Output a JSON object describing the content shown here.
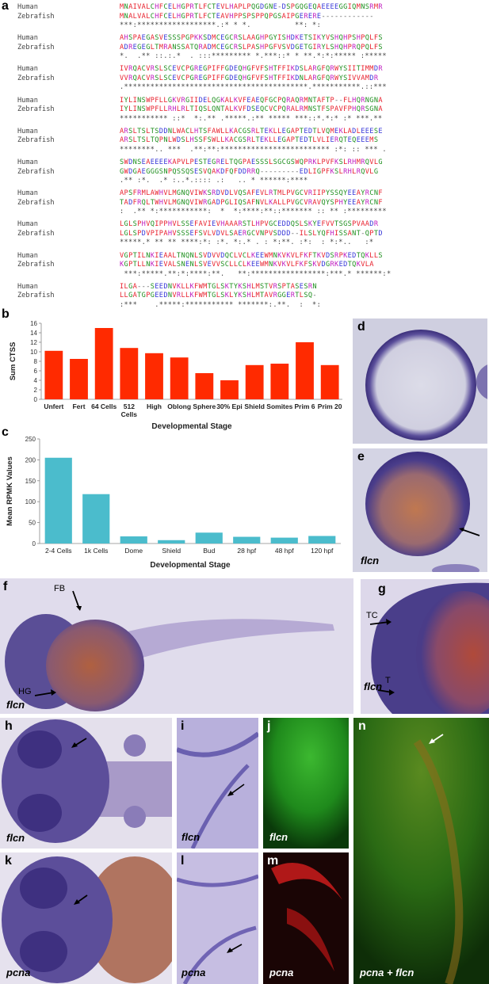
{
  "labels": {
    "a": "a",
    "b": "b",
    "c": "c",
    "d": "d",
    "e": "e",
    "f": "f",
    "g": "g",
    "h": "h",
    "i": "i",
    "j": "j",
    "k": "k",
    "l": "l",
    "m": "m",
    "n": "n"
  },
  "alignment": {
    "human_label": "Human",
    "zebrafish_label": "Zebrafish",
    "blocks": [
      {
        "human": "MNAIVALCHFCELHGPRTLFCTEVLHAPLPQGDGNE-DSPGQGEQAEEEEGGIQMNSRMR",
        "zebrafish": "MNALVALCHFCELHGPRTLFCTEAVHPPSPSPPQPGSAIPGERERE------------",
        "cons": "***:******************.:* * *.          **: *:"
      },
      {
        "human": "AHSPAEGASVESSSPGPKKSDMCEGCRSLAAGHPGYISHDKETSIKYVSHQHPSHPQLFS",
        "zebrafish": "ADREGEGLTMRANSSATQRADMCEGCRSLPASHPGFVSVDGETGIRYLSHQHPRQPQLFS",
        "cons": "*.  .** ::.:.*  . :::********* *.***::* * **.*:*:***** :*****"
      },
      {
        "human": "IVRQACVRSLSCEVCPGREGPIFFGDEQHGFVFSHTFFIKDSLARGFQRWYSIITIMMDR",
        "zebrafish": "VVRQACVRSLSCEVCPGREGPIFFGDEQHGFVFSHTFFIKDNLARGFQRWYSIVVAMDR",
        "cons": ".******************************************.***********.::***"
      },
      {
        "human": "IYLINSWPFLLGKVRGIIDELQGKALKVFEAEQFGCPQRAQRMNTAFTP--FLHQRNGNA",
        "zebrafish": "IYLINSWPFLLRHLRLTIQSLQNTALKVFDSEQCVCPQRALRMNSTFSPAVFPHQRSGNA",
        "cons": "*********** ::*  *:.** .*****.:** ***** ***::*.*:* :* ***.**"
      },
      {
        "human": "ARSLTSLTSDDNLWACLHTSFAWLLKACGSRLTEKLLEGAPTEDTLVQMEKLADLEEESE",
        "zebrafish": "ARSLTSLTQPNLWDSLHSSFSWLLKACGSRLTEKLLEGAPTEDTLVLIERQTEQEEEMS",
        "cons": "********.. ***  .**:**:************************* :*: :: *** ."
      },
      {
        "human": "SWDNSEAEEEEKAPVLPESTEGRELTQGPAESSSLSGCGSWQPRKLPVFKSLRHMRQVLG",
        "zebrafish": "GWDGAEGGGSNPQSSQSESVQAKDFQFDDRRQ---------EDLIGPFKSLRHLRQVLG",
        "cons": ".** :*.  .* :..*.:::: .:   .. * ******:****"
      },
      {
        "human": "APSFRMLAWHVLMGNQVIWKSRDVDLVQSAFEVLRTMLPVGCVRIIPYSSQYEEAYRCNF",
        "zebrafish": "TADFRQLTWHVLMGNQVIWRGADPGLIQSAFNVLKALLPVGCVRAVQYSPHYEEAYRCNF",
        "cons": ":  .** *:***********:  *  *:****:**::******* :: ** :*********"
      },
      {
        "human": "LGLSPHVQIPPHVLSSEFAVIEVHAAARSTLHPVGCEDDQSLSKYEFVVTSGSPVAADR",
        "zebrafish": "LGLSPDVPIPAHVSSSEFSVLVDVLSAERGCVNPVSDDD--ILSLYQFHISSANT-QPTD",
        "cons": "*****.* ** ** ****:*: :*. *:.* . : *:**. :*:  : *:*..   :*"
      },
      {
        "human": "VGPTILNKIEAALTNQNLSVDVVDQCLVCLKEEWMNKVKVLFKFTKVDSRPKEDTQKLLS",
        "zebrafish": "KGPTLLNKIEVALSNENLSVEVVSCLLCLKEEWMNKVKVLFKFSKVDGRKEDTQKVLA",
        "cons": " ***:*****.**:*:****:**.   **:*****************:***.* ******:*"
      },
      {
        "human": "ILGA---SEEDNVKLLKFWMTGLSKTYKSHLMSTVRSPTASESRN",
        "zebrafish": "LLGATGPGEEDNVRLLKFWMTGLSKLYKSHLMTAVRGGERTLSQ-",
        "cons": ":***    .*****:*********** *******:.**.  :  *:"
      }
    ]
  },
  "panel_b": {
    "chart_data": {
      "type": "bar",
      "categories": [
        "Unfert",
        "Fert",
        "64 Cells",
        "512 Cells",
        "High",
        "Oblong",
        "Sphere",
        "30% Epi",
        "Shield",
        "Somites",
        "Prim 6",
        "Prim 20"
      ],
      "values": [
        10.2,
        8.5,
        15.0,
        10.8,
        9.7,
        8.8,
        5.5,
        4.0,
        7.2,
        7.5,
        12.0,
        7.2
      ],
      "ylabel": "Sum CTSS",
      "xlabel": "Developmental Stage",
      "ylim": [
        0,
        16
      ],
      "yticks": [
        0,
        2,
        4,
        6,
        8,
        10,
        12,
        14,
        16
      ],
      "color": "#ff2a00"
    }
  },
  "panel_c": {
    "chart_data": {
      "type": "bar",
      "categories": [
        "2-4 Cells",
        "1k Cells",
        "Dome",
        "Shield",
        "Bud",
        "28 hpf",
        "48 hpf",
        "120 hpf"
      ],
      "values": [
        205,
        118,
        17,
        8,
        26,
        16,
        14,
        18
      ],
      "ylabel": "Mean RPMK Values",
      "xlabel": "Developmental Stage",
      "ylim": [
        0,
        250
      ],
      "yticks": [
        0,
        50,
        100,
        150,
        200,
        250
      ],
      "color": "#4bbccc"
    }
  },
  "photo_labels": {
    "e": "flcn",
    "f": "flcn",
    "g": "flcn",
    "h": "flcn",
    "i": "flcn",
    "j": "flcn",
    "k": "pcna",
    "l": "pcna",
    "m": "pcna",
    "n": "pcna + flcn"
  },
  "annotations": {
    "fb": "FB",
    "hg": "HG",
    "tc": "TC",
    "t": "T"
  }
}
